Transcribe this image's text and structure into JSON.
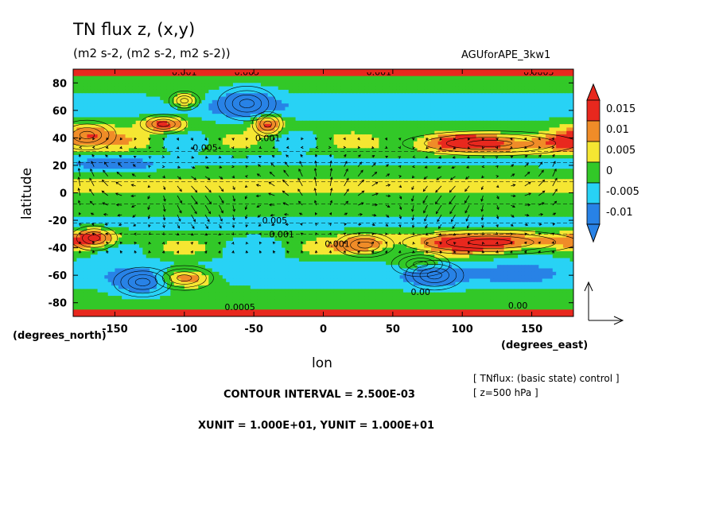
{
  "chart_data": {
    "type": "heatmap",
    "title": "TN flux z, (x,y)",
    "subtitle": "(m2 s-2, (m2 s-2, m2 s-2))",
    "run_name": "AGUforAPE_3kw1",
    "xlabel": "lon",
    "ylabel": "latitude",
    "x_units": "(degrees_east)",
    "y_units": "(degrees_north)",
    "xlim": [
      -180,
      180
    ],
    "ylim": [
      -90,
      90
    ],
    "x_ticks": [
      "-150",
      "-100",
      "-50",
      "0",
      "50",
      "100",
      "150"
    ],
    "x_tick_values": [
      -150,
      -100,
      -50,
      0,
      50,
      100,
      150
    ],
    "y_ticks": [
      "80",
      "60",
      "40",
      "20",
      "0",
      "-20",
      "-40",
      "-60",
      "-80"
    ],
    "y_tick_values": [
      80,
      60,
      40,
      20,
      0,
      -20,
      -40,
      -60,
      -80
    ],
    "colorbar": {
      "labels": [
        "0.015",
        "0.01",
        "0.005",
        "0",
        "-0.005",
        "-0.01"
      ],
      "levels": [
        0.015,
        0.01,
        0.005,
        0,
        -0.005,
        -0.01
      ],
      "colors": [
        "#e8281e",
        "#f08c28",
        "#f5e632",
        "#32c828",
        "#28d2f5",
        "#2882e6"
      ]
    },
    "contour_labels": [
      "0.001",
      "0.005",
      "0.001",
      "0.0005",
      "0.001",
      "0.005",
      "0.00",
      "0.001",
      "0.001",
      "0.005",
      "0.00",
      "0.0005"
    ],
    "contour_interval": "CONTOUR INTERVAL = 2.500E-03",
    "vector_units": "XUNIT = 1.000E+01, YUNIT = 1.000E+01",
    "annotation_1": "[ TNflux: (basic state) control ]",
    "annotation_2": "[ z=500 hPa ]",
    "colors": {
      "red": "#e8281e",
      "orange": "#f08c28",
      "yellow": "#f5e632",
      "green": "#32c828",
      "cyan": "#28d2f5",
      "blue": "#2882e6",
      "border": "#e8281e"
    }
  }
}
